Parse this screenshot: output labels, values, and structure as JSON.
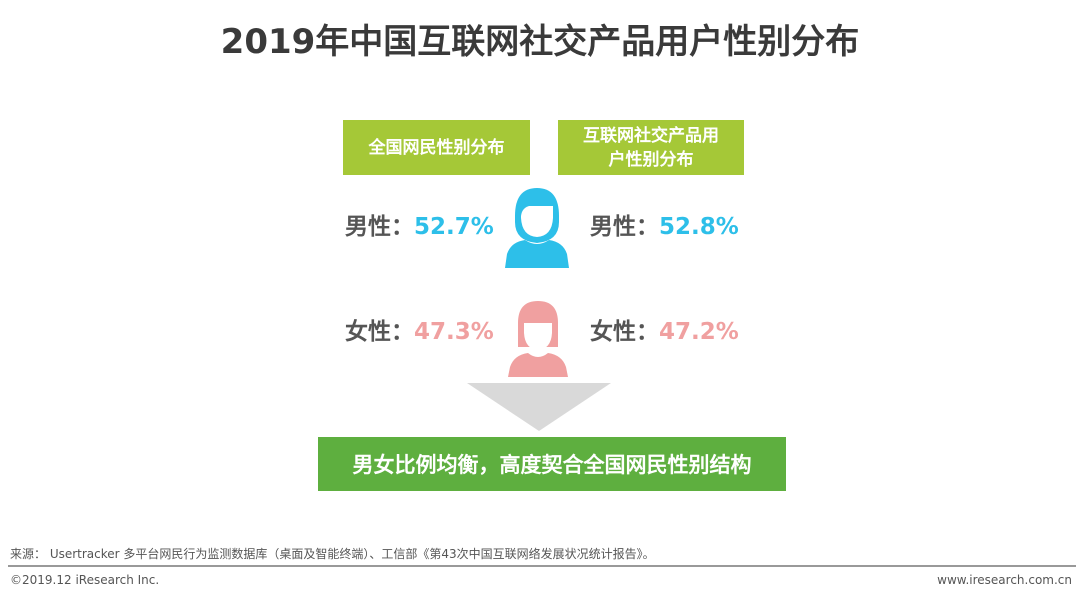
{
  "title": "2019年中国互联网社交产品用户性别分布",
  "headers": {
    "national": "全国网民性别分布",
    "social": "互联网社交产品用户性别分布"
  },
  "rows": {
    "male": {
      "label": "男性：",
      "national": "52.7%",
      "social": "52.8%"
    },
    "female": {
      "label": "女性：",
      "national": "47.3%",
      "social": "47.2%"
    }
  },
  "conclusion": "男女比例均衡，高度契合全国网民性别结构",
  "footer": {
    "source": "来源： Usertracker 多平台网民行为监测数据库（桌面及智能终端）、工信部《第43次中国互联网络发展状况统计报告》。",
    "copyright": "©2019.12 iResearch Inc.",
    "website": "www.iresearch.com.cn"
  },
  "colors": {
    "header_bg": "#a5c837",
    "male": "#2dbfe9",
    "female": "#f0a0a0",
    "banner_bg": "#5eaf3f",
    "arrow": "#d9d9d9"
  },
  "icons": {
    "male": "male-person-icon",
    "female": "female-person-icon",
    "arrow": "down-triangle-arrow-icon"
  }
}
